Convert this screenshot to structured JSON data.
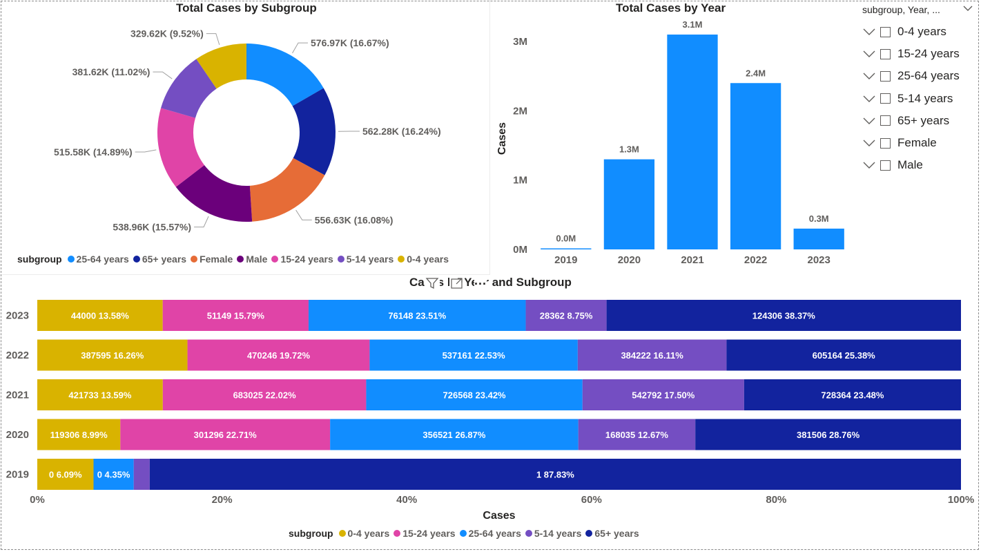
{
  "donut": {
    "title": "Total Cases by Subgroup",
    "legend_title": "subgroup",
    "legend": [
      {
        "label": "25-64 years",
        "color": "#118dff"
      },
      {
        "label": "65+ years",
        "color": "#12239e"
      },
      {
        "label": "Female",
        "color": "#e66c37"
      },
      {
        "label": "Male",
        "color": "#6b007b"
      },
      {
        "label": "15-24 years",
        "color": "#e044a7"
      },
      {
        "label": "5-14 years",
        "color": "#744ec2"
      },
      {
        "label": "0-4 years",
        "color": "#d9b300"
      }
    ]
  },
  "bar": {
    "title": "Total Cases by Year"
  },
  "slicer": {
    "header": "subgroup, Year, ...",
    "items": [
      "0-4 years",
      "15-24 years",
      "25-64 years",
      "5-14 years",
      "65+ years",
      "Female",
      "Male"
    ]
  },
  "stacked": {
    "title": "Cases by Year and Subgroup",
    "legend_title": "subgroup",
    "legend": [
      {
        "label": "0-4 years",
        "color": "#d9b300"
      },
      {
        "label": "15-24 years",
        "color": "#e044a7"
      },
      {
        "label": "25-64 years",
        "color": "#118dff"
      },
      {
        "label": "5-14 years",
        "color": "#744ec2"
      },
      {
        "label": "65+ years",
        "color": "#12239e"
      }
    ]
  },
  "chart_data": [
    {
      "type": "pie",
      "variant": "donut",
      "title": "Total Cases by Subgroup",
      "slices": [
        {
          "label": "25-64 years",
          "value": 576.97,
          "display": "576.97K (16.67%)",
          "color": "#118dff"
        },
        {
          "label": "65+ years",
          "value": 562.28,
          "display": "562.28K (16.24%)",
          "color": "#12239e"
        },
        {
          "label": "Female",
          "value": 556.63,
          "display": "556.63K (16.08%)",
          "color": "#e66c37"
        },
        {
          "label": "Male",
          "value": 538.96,
          "display": "538.96K (15.57%)",
          "color": "#6b007b"
        },
        {
          "label": "15-24 years",
          "value": 515.58,
          "display": "515.58K (14.89%)",
          "color": "#e044a7"
        },
        {
          "label": "5-14 years",
          "value": 381.62,
          "display": "381.62K (11.02%)",
          "color": "#744ec2"
        },
        {
          "label": "0-4 years",
          "value": 329.62,
          "display": "329.62K (9.52%)",
          "color": "#d9b300"
        }
      ],
      "legend_position": "bottom"
    },
    {
      "type": "bar",
      "title": "Total Cases by Year",
      "categories": [
        "2019",
        "2020",
        "2021",
        "2022",
        "2023"
      ],
      "values": [
        0.0,
        1.3,
        3.1,
        2.4,
        0.3
      ],
      "data_labels": [
        "0.0M",
        "1.3M",
        "3.1M",
        "2.4M",
        "0.3M"
      ],
      "ylabel": "Cases",
      "yticks": [
        "0M",
        "1M",
        "2M",
        "3M"
      ],
      "ylim": [
        0,
        3.2
      ],
      "color": "#118dff"
    },
    {
      "type": "bar",
      "variant": "100%-stacked-horizontal",
      "title": "Cases by Year and Subgroup",
      "xlabel": "Cases",
      "xticks": [
        "0%",
        "20%",
        "40%",
        "60%",
        "80%",
        "100%"
      ],
      "categories": [
        "2023",
        "2022",
        "2021",
        "2020",
        "2019"
      ],
      "series": [
        {
          "name": "0-4 years",
          "color": "#d9b300",
          "percents": [
            13.58,
            16.26,
            13.59,
            8.99,
            6.09
          ],
          "labels": [
            "44000 13.58%",
            "387595 16.26%",
            "421733 13.59%",
            "119306 8.99%",
            "0 6.09%"
          ]
        },
        {
          "name": "15-24 years",
          "color": "#e044a7",
          "percents": [
            15.79,
            19.72,
            22.02,
            22.71,
            0
          ],
          "labels": [
            "51149 15.79%",
            "470246 19.72%",
            "683025 22.02%",
            "301296 22.71%",
            ""
          ]
        },
        {
          "name": "25-64 years",
          "color": "#118dff",
          "percents": [
            23.51,
            22.53,
            23.42,
            26.87,
            4.35
          ],
          "labels": [
            "76148 23.51%",
            "537161 22.53%",
            "726568 23.42%",
            "356521 26.87%",
            "0 4.35%"
          ]
        },
        {
          "name": "5-14 years",
          "color": "#744ec2",
          "percents": [
            8.75,
            16.11,
            17.5,
            12.67,
            1.73
          ],
          "labels": [
            "28362 8.75%",
            "384222 16.11%",
            "542792 17.50%",
            "168035 12.67%",
            ""
          ]
        },
        {
          "name": "65+ years",
          "color": "#12239e",
          "percents": [
            38.37,
            25.38,
            23.48,
            28.76,
            87.83
          ],
          "labels": [
            "124306 38.37%",
            "605164 25.38%",
            "728364 23.48%",
            "381506 28.76%",
            "1 87.83%"
          ]
        }
      ],
      "legend_position": "bottom"
    }
  ]
}
